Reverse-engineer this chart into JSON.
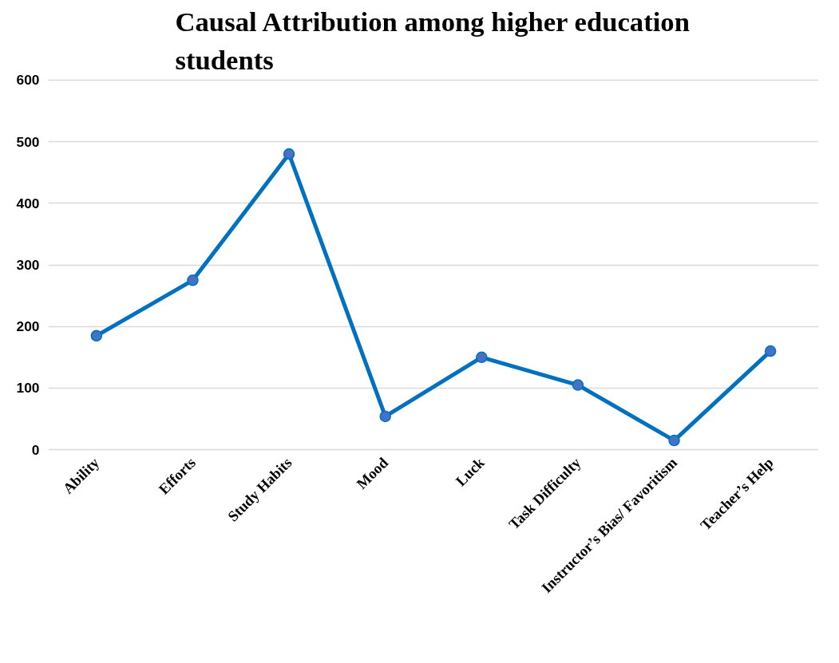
{
  "chart_data": {
    "type": "line",
    "title": "Causal Attribution among higher education\nstudents",
    "categories": [
      "Ability",
      "Efforts",
      "Study Habits",
      "Mood",
      "Luck",
      "Task Difficulty",
      "Instructor’s Bias/ Favoritism",
      "Teacher’s Help"
    ],
    "series": [
      {
        "color": "#0070c0",
        "values": [
          185,
          275,
          480,
          54,
          150,
          105,
          15,
          160
        ]
      }
    ],
    "ylim": [
      0,
      600
    ],
    "yticks": [
      0,
      100,
      200,
      300,
      400,
      500,
      600
    ],
    "grid": "y",
    "marker": "circle",
    "line_style": "solid"
  }
}
